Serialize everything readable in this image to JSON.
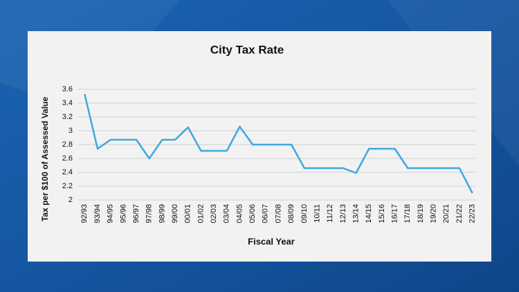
{
  "chart_data": {
    "type": "line",
    "title": "City Tax Rate",
    "x_label": "Fiscal Year",
    "y_label": "Tax per $100 of Assessed Value",
    "categories": [
      "92/93",
      "93/94",
      "94/95",
      "95/96",
      "96/97",
      "97/98",
      "98/99",
      "99/00",
      "00/01",
      "01/02",
      "02/03",
      "03/04",
      "04/05",
      "05/06",
      "06/07",
      "07/08",
      "08/09",
      "09/10",
      "10/11",
      "11/12",
      "12/13",
      "13/14",
      "14/15",
      "15/16",
      "16/17",
      "17/18",
      "18/19",
      "19/20",
      "20/21",
      "21/22",
      "22/23"
    ],
    "values": [
      3.53,
      2.74,
      2.87,
      2.87,
      2.87,
      2.6,
      2.87,
      2.87,
      3.05,
      2.71,
      2.71,
      2.71,
      3.06,
      2.8,
      2.8,
      2.8,
      2.8,
      2.46,
      2.46,
      2.46,
      2.46,
      2.39,
      2.74,
      2.74,
      2.74,
      2.46,
      2.46,
      2.46,
      2.46,
      2.46,
      2.1
    ],
    "color": "#3da8df",
    "ylim": [
      2,
      3.6
    ],
    "yticks": [
      2,
      2.2,
      2.4,
      2.6,
      2.8,
      3,
      3.2,
      3.4,
      3.6
    ],
    "grid": true
  }
}
